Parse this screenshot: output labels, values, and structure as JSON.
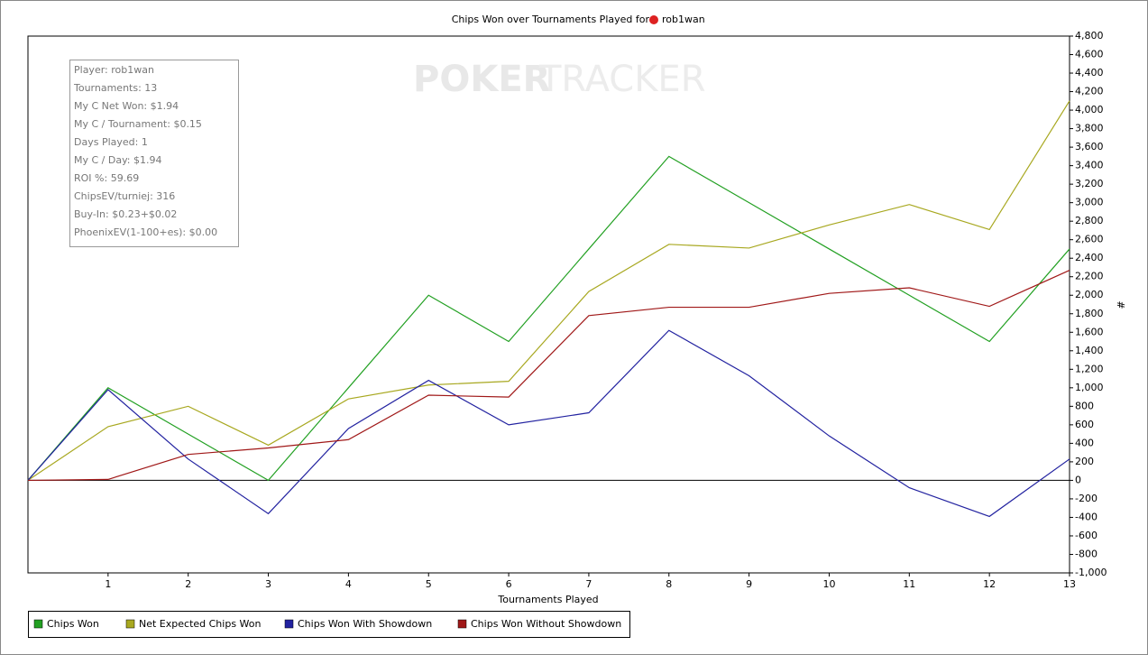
{
  "chart_data": {
    "type": "line",
    "title": "Chips Won over Tournaments Played for",
    "player": "rob1wan",
    "watermark": [
      "POKER",
      "TRACKER"
    ],
    "xlabel": "Tournaments Played",
    "ylabel": "#",
    "stats": [
      "Player: rob1wan",
      "Tournaments: 13",
      "My C Net Won: $1.94",
      "My C / Tournament: $0.15",
      "Days Played: 1",
      "My C / Day: $1.94",
      "ROI %: 59.69",
      "ChipsEV/turniej: 316",
      "Buy-In: $0.23+$0.02",
      "PhoenixEV(1-100+es): $0.00"
    ],
    "x": [
      0,
      1,
      2,
      3,
      4,
      5,
      6,
      7,
      8,
      9,
      10,
      11,
      12,
      13
    ],
    "xlim": [
      0,
      13
    ],
    "xticks": [
      1,
      2,
      3,
      4,
      5,
      6,
      7,
      8,
      9,
      10,
      11,
      12,
      13
    ],
    "ylim": [
      -1000,
      4800
    ],
    "yticks": [
      {
        "value": -1000,
        "label": "-1,000"
      },
      -800,
      -600,
      -400,
      -200,
      0,
      200,
      400,
      600,
      800,
      {
        "value": 1000,
        "label": "1,000"
      },
      {
        "value": 1200,
        "label": "1,200"
      },
      {
        "value": 1400,
        "label": "1,400"
      },
      {
        "value": 1600,
        "label": "1,600"
      },
      {
        "value": 1800,
        "label": "1,800"
      },
      {
        "value": 2000,
        "label": "2,000"
      },
      {
        "value": 2200,
        "label": "2,200"
      },
      {
        "value": 2400,
        "label": "2,400"
      },
      {
        "value": 2600,
        "label": "2,600"
      },
      {
        "value": 2800,
        "label": "2,800"
      },
      {
        "value": 3000,
        "label": "3,000"
      },
      {
        "value": 3200,
        "label": "3,200"
      },
      {
        "value": 3400,
        "label": "3,400"
      },
      {
        "value": 3600,
        "label": "3,600"
      },
      {
        "value": 3800,
        "label": "3,800"
      },
      {
        "value": 4000,
        "label": "4,000"
      },
      {
        "value": 4200,
        "label": "4,200"
      },
      {
        "value": 4400,
        "label": "4,400"
      },
      {
        "value": 4600,
        "label": "4,600"
      },
      {
        "value": 4800,
        "label": "4,800"
      }
    ],
    "grid": false,
    "series": [
      {
        "name": "Chips Won",
        "color": "#22a022",
        "values": [
          0,
          1000,
          500,
          0,
          1000,
          2000,
          1500,
          2500,
          3500,
          3000,
          2500,
          2000,
          1500,
          2500
        ]
      },
      {
        "name": "Net Expected Chips Won",
        "color": "#a8a820",
        "values": [
          0,
          580,
          800,
          380,
          880,
          1030,
          1070,
          2040,
          2550,
          2510,
          2760,
          2980,
          2710,
          4100
        ]
      },
      {
        "name": "Chips Won With Showdown",
        "color": "#2222a0",
        "values": [
          0,
          980,
          230,
          -360,
          560,
          1080,
          600,
          730,
          1620,
          1130,
          480,
          -80,
          -390,
          230
        ]
      },
      {
        "name": "Chips Won Without Showdown",
        "color": "#a01818",
        "values": [
          0,
          10,
          280,
          350,
          440,
          920,
          900,
          1780,
          1870,
          1870,
          2020,
          2080,
          1880,
          2270
        ]
      }
    ]
  }
}
